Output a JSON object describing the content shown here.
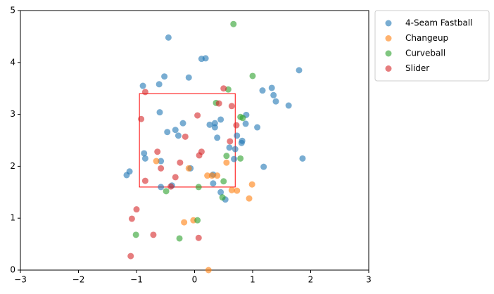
{
  "chart_data": {
    "type": "scatter",
    "series": [
      {
        "name": "4-Seam Fastball",
        "color": "#1f77b4",
        "x": [
          -0.45,
          0.12,
          0.19,
          -0.52,
          -0.1,
          -0.89,
          -0.61,
          1.8,
          1.33,
          1.17,
          1.36,
          1.4,
          1.62,
          -0.6,
          0.89,
          0.88,
          1.08,
          -0.2,
          0.26,
          0.35,
          0.35,
          0.45,
          -0.33,
          -0.47,
          -0.28,
          0.73,
          0.82,
          0.81,
          0.39,
          0.6,
          0.7,
          -0.87,
          -0.85,
          0.68,
          -0.58,
          -1.12,
          -1.17,
          1.19,
          1.86,
          -0.07,
          0.32,
          0.32,
          -0.58,
          -0.39,
          0.45,
          0.53
        ],
        "values": [
          4.48,
          4.07,
          4.08,
          3.73,
          3.71,
          3.55,
          3.58,
          3.85,
          3.51,
          3.46,
          3.37,
          3.25,
          3.17,
          3.04,
          2.99,
          2.82,
          2.75,
          2.83,
          2.8,
          2.83,
          2.75,
          2.9,
          2.7,
          2.66,
          2.59,
          2.59,
          2.49,
          2.45,
          2.55,
          2.36,
          2.33,
          2.25,
          2.15,
          2.14,
          2.1,
          1.9,
          1.83,
          1.99,
          2.15,
          1.96,
          1.84,
          1.67,
          1.6,
          1.63,
          1.5,
          1.36
        ]
      },
      {
        "name": "Changeup",
        "color": "#ff7f0e",
        "x": [
          -0.66,
          -0.1,
          0.22,
          0.3,
          0.39,
          0.55,
          0.64,
          0.73,
          0.99,
          0.94,
          -0.02,
          -0.18,
          0.24
        ],
        "values": [
          2.1,
          1.96,
          1.82,
          1.82,
          1.82,
          2.07,
          1.54,
          1.53,
          1.65,
          1.38,
          0.96,
          0.92,
          0.0
        ]
      },
      {
        "name": "Curveball",
        "color": "#2ca02c",
        "x": [
          0.67,
          1.0,
          0.58,
          0.37,
          0.79,
          0.83,
          0.55,
          0.79,
          0.07,
          0.5,
          -0.49,
          0.48,
          -1.01,
          0.05,
          -0.26
        ],
        "values": [
          4.74,
          3.74,
          3.48,
          3.22,
          2.95,
          2.93,
          2.2,
          2.15,
          1.6,
          1.71,
          1.52,
          1.4,
          0.68,
          0.96,
          0.61
        ]
      },
      {
        "name": "Slider",
        "color": "#d62728",
        "x": [
          -0.85,
          0.5,
          0.42,
          0.64,
          0.05,
          -0.92,
          0.72,
          0.61,
          -0.16,
          -0.64,
          0.12,
          0.08,
          -0.25,
          -0.58,
          -0.33,
          -0.85,
          -0.41,
          -1.0,
          -1.08,
          -0.71,
          0.07,
          -1.1
        ],
        "values": [
          3.43,
          3.5,
          3.21,
          3.16,
          2.98,
          2.91,
          2.79,
          2.48,
          2.57,
          2.28,
          2.28,
          2.21,
          2.07,
          1.96,
          1.79,
          1.72,
          1.61,
          1.17,
          0.99,
          0.68,
          0.62,
          0.27
        ]
      }
    ],
    "strike_zone": {
      "x": [
        -0.95,
        0.7
      ],
      "y": [
        1.6,
        3.4
      ],
      "color": "#ff0000"
    },
    "xlim": [
      -3,
      3
    ],
    "xticks": [
      {
        "value": -3,
        "label": "−3"
      },
      {
        "value": -2,
        "label": "−2"
      },
      {
        "value": -1,
        "label": "−1"
      },
      0,
      1,
      2,
      3
    ],
    "ylim": [
      0,
      5
    ],
    "yticks": [
      0,
      1,
      2,
      3,
      4,
      5
    ],
    "legend": "outside-right"
  }
}
